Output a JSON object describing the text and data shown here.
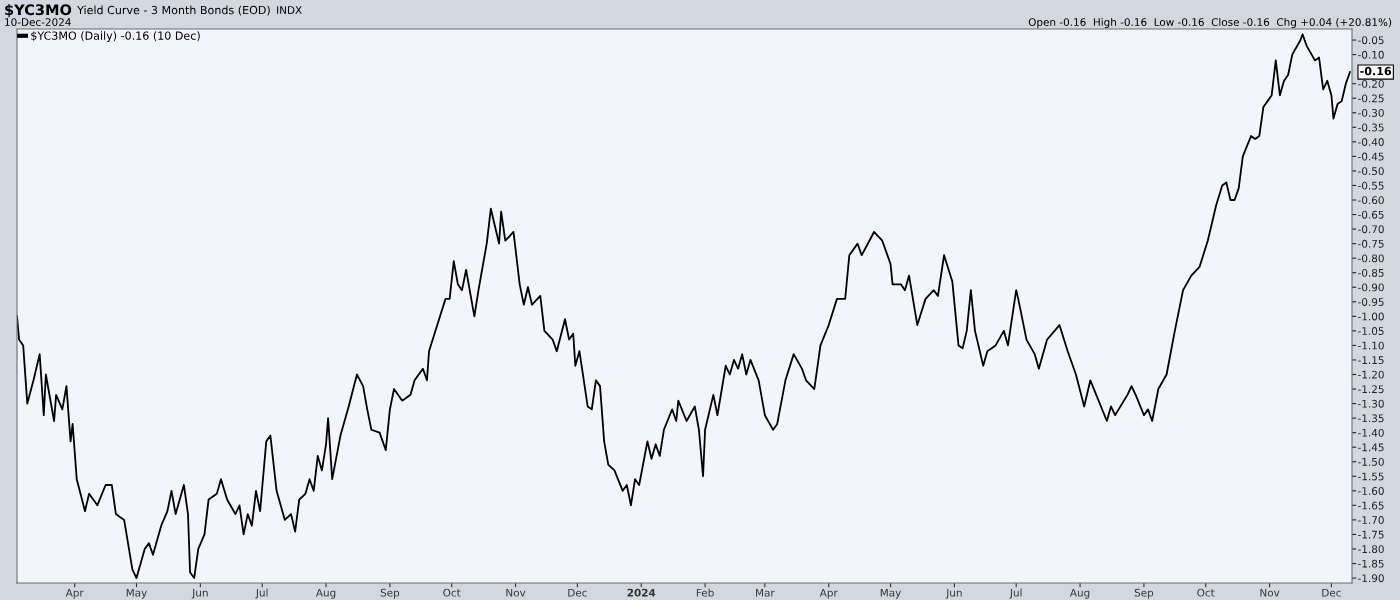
{
  "chart_data": {
    "type": "line",
    "title": "$YC3MO",
    "subtitle": "Yield Curve - 3 Month Bonds (EOD)",
    "annotations": [
      "INDX",
      "10-Dec-2024",
      "Open -0.16  High -0.16  Low -0.16  Close -0.16  Chg +0.04 (+20.81%)",
      {
        "text": "-0.16",
        "x": "2024-12-10",
        "y": -0.16
      }
    ],
    "legend": "top left",
    "grid": false,
    "marker": "none",
    "line_style": "solid",
    "xlim": [
      "2023-03-04",
      "2024-12-11"
    ],
    "xticks": [
      {
        "value": "2023-04-01",
        "label": "Apr"
      },
      {
        "value": "2023-05-01",
        "label": "May"
      },
      {
        "value": "2023-06-01",
        "label": "Jun"
      },
      {
        "value": "2023-07-01",
        "label": "Jul"
      },
      {
        "value": "2023-08-01",
        "label": "Aug"
      },
      {
        "value": "2023-09-01",
        "label": "Sep"
      },
      {
        "value": "2023-10-01",
        "label": "Oct"
      },
      {
        "value": "2023-11-01",
        "label": "Nov"
      },
      {
        "value": "2023-12-01",
        "label": "Dec"
      },
      {
        "value": "2024-01-01",
        "label": "2024"
      },
      {
        "value": "2024-02-01",
        "label": "Feb"
      },
      {
        "value": "2024-03-01",
        "label": "Mar"
      },
      {
        "value": "2024-04-01",
        "label": "Apr"
      },
      {
        "value": "2024-05-01",
        "label": "May"
      },
      {
        "value": "2024-06-01",
        "label": "Jun"
      },
      {
        "value": "2024-07-01",
        "label": "Jul"
      },
      {
        "value": "2024-08-01",
        "label": "Aug"
      },
      {
        "value": "2024-09-01",
        "label": "Sep"
      },
      {
        "value": "2024-10-01",
        "label": "Oct"
      },
      {
        "value": "2024-11-01",
        "label": "Nov"
      },
      {
        "value": "2024-12-01",
        "label": "Dec"
      }
    ],
    "ylim": [
      -1.917,
      -0.012
    ],
    "yticks": [
      -0.05,
      {
        "value": -0.1,
        "label": "-0.10"
      },
      {
        "value": -0.2,
        "label": "-0.20"
      },
      -0.25,
      {
        "value": -0.3,
        "label": "-0.30"
      },
      -0.35,
      {
        "value": -0.4,
        "label": "-0.40"
      },
      -0.45,
      {
        "value": -0.5,
        "label": "-0.50"
      },
      -0.55,
      {
        "value": -0.6,
        "label": "-0.60"
      },
      -0.65,
      {
        "value": -0.7,
        "label": "-0.70"
      },
      -0.75,
      {
        "value": -0.8,
        "label": "-0.80"
      },
      -0.85,
      {
        "value": -0.9,
        "label": "-0.90"
      },
      -0.95,
      {
        "value": -1.0,
        "label": "-1.00"
      },
      -1.05,
      {
        "value": -1.1,
        "label": "-1.10"
      },
      -1.15,
      {
        "value": -1.2,
        "label": "-1.20"
      },
      -1.25,
      {
        "value": -1.3,
        "label": "-1.30"
      },
      -1.35,
      {
        "value": -1.4,
        "label": "-1.40"
      },
      -1.45,
      {
        "value": -1.5,
        "label": "-1.50"
      },
      -1.55,
      {
        "value": -1.6,
        "label": "-1.60"
      },
      -1.65,
      {
        "value": -1.7,
        "label": "-1.70"
      },
      -1.75,
      {
        "value": -1.8,
        "label": "-1.80"
      },
      -1.85,
      {
        "value": -1.9,
        "label": "-1.90"
      }
    ],
    "series": [
      {
        "name": "$YC3MO (Daily) -0.16 (10 Dec)",
        "color": "#000000",
        "x": [
          "2023-03-04",
          "2023-03-05",
          "2023-03-07",
          "2023-03-09",
          "2023-03-12",
          "2023-03-15",
          "2023-03-17",
          "2023-03-18",
          "2023-03-22",
          "2023-03-23",
          "2023-03-26",
          "2023-03-28",
          "2023-03-30",
          "2023-03-31",
          "2023-04-02",
          "2023-04-06",
          "2023-04-08",
          "2023-04-12",
          "2023-04-16",
          "2023-04-19",
          "2023-04-21",
          "2023-04-25",
          "2023-04-29",
          "2023-05-01",
          "2023-05-05",
          "2023-05-07",
          "2023-05-09",
          "2023-05-13",
          "2023-05-16",
          "2023-05-18",
          "2023-05-20",
          "2023-05-24",
          "2023-05-26",
          "2023-05-27",
          "2023-05-29",
          "2023-05-31",
          "2023-06-03",
          "2023-06-05",
          "2023-06-09",
          "2023-06-11",
          "2023-06-14",
          "2023-06-18",
          "2023-06-20",
          "2023-06-22",
          "2023-06-24",
          "2023-06-26",
          "2023-06-28",
          "2023-06-30",
          "2023-07-03",
          "2023-07-05",
          "2023-07-08",
          "2023-07-12",
          "2023-07-15",
          "2023-07-17",
          "2023-07-19",
          "2023-07-22",
          "2023-07-24",
          "2023-07-26",
          "2023-07-28",
          "2023-07-30",
          "2023-08-01",
          "2023-08-02",
          "2023-08-04",
          "2023-08-08",
          "2023-08-12",
          "2023-08-16",
          "2023-08-19",
          "2023-08-21",
          "2023-08-23",
          "2023-08-27",
          "2023-08-30",
          "2023-09-01",
          "2023-09-03",
          "2023-09-07",
          "2023-09-11",
          "2023-09-13",
          "2023-09-17",
          "2023-09-19",
          "2023-09-20",
          "2023-09-24",
          "2023-09-28",
          "2023-09-30",
          "2023-10-02",
          "2023-10-04",
          "2023-10-06",
          "2023-10-08",
          "2023-10-12",
          "2023-10-14",
          "2023-10-18",
          "2023-10-20",
          "2023-10-22",
          "2023-10-24",
          "2023-10-25",
          "2023-10-27",
          "2023-10-31",
          "2023-11-03",
          "2023-11-05",
          "2023-11-07",
          "2023-11-09",
          "2023-11-13",
          "2023-11-15",
          "2023-11-19",
          "2023-11-21",
          "2023-11-25",
          "2023-11-27",
          "2023-11-29",
          "2023-11-30",
          "2023-12-02",
          "2023-12-06",
          "2023-12-08",
          "2023-12-10",
          "2023-12-12",
          "2023-12-14",
          "2023-12-16",
          "2023-12-19",
          "2023-12-23",
          "2023-12-25",
          "2023-12-27",
          "2023-12-29",
          "2023-12-31",
          "2024-01-04",
          "2024-01-06",
          "2024-01-08",
          "2024-01-10",
          "2024-01-12",
          "2024-01-16",
          "2024-01-18",
          "2024-01-19",
          "2024-01-23",
          "2024-01-27",
          "2024-01-29",
          "2024-01-31",
          "2024-02-01",
          "2024-02-05",
          "2024-02-07",
          "2024-02-11",
          "2024-02-13",
          "2024-02-15",
          "2024-02-17",
          "2024-02-19",
          "2024-02-21",
          "2024-02-23",
          "2024-02-27",
          "2024-03-01",
          "2024-03-05",
          "2024-03-07",
          "2024-03-11",
          "2024-03-15",
          "2024-03-19",
          "2024-03-21",
          "2024-03-25",
          "2024-03-28",
          "2024-04-01",
          "2024-04-05",
          "2024-04-09",
          "2024-04-11",
          "2024-04-15",
          "2024-04-17",
          "2024-04-23",
          "2024-04-27",
          "2024-05-01",
          "2024-05-02",
          "2024-05-06",
          "2024-05-08",
          "2024-05-10",
          "2024-05-14",
          "2024-05-18",
          "2024-05-22",
          "2024-05-24",
          "2024-05-27",
          "2024-05-31",
          "2024-06-03",
          "2024-06-05",
          "2024-06-07",
          "2024-06-09",
          "2024-06-11",
          "2024-06-15",
          "2024-06-17",
          "2024-06-21",
          "2024-06-25",
          "2024-06-27",
          "2024-07-01",
          "2024-07-02",
          "2024-07-06",
          "2024-07-10",
          "2024-07-12",
          "2024-07-16",
          "2024-07-22",
          "2024-07-26",
          "2024-07-30",
          "2024-08-03",
          "2024-08-06",
          "2024-08-10",
          "2024-08-14",
          "2024-08-16",
          "2024-08-18",
          "2024-08-24",
          "2024-08-26",
          "2024-08-28",
          "2024-09-01",
          "2024-09-03",
          "2024-09-05",
          "2024-09-08",
          "2024-09-12",
          "2024-09-16",
          "2024-09-20",
          "2024-09-24",
          "2024-09-28",
          "2024-10-02",
          "2024-10-06",
          "2024-10-09",
          "2024-10-11",
          "2024-10-13",
          "2024-10-15",
          "2024-10-17",
          "2024-10-19",
          "2024-10-23",
          "2024-10-25",
          "2024-10-27",
          "2024-10-29",
          "2024-11-02",
          "2024-11-04",
          "2024-11-06",
          "2024-11-08",
          "2024-11-10",
          "2024-11-12",
          "2024-11-16",
          "2024-11-17",
          "2024-11-19",
          "2024-11-23",
          "2024-11-25",
          "2024-11-27",
          "2024-11-29",
          "2024-12-01",
          "2024-12-02",
          "2024-12-04",
          "2024-12-06",
          "2024-12-08",
          "2024-12-10"
        ],
        "values": [
          -1.0,
          -1.08,
          -1.1,
          -1.3,
          -1.22,
          -1.13,
          -1.34,
          -1.2,
          -1.36,
          -1.27,
          -1.32,
          -1.24,
          -1.43,
          -1.37,
          -1.56,
          -1.67,
          -1.61,
          -1.65,
          -1.58,
          -1.58,
          -1.68,
          -1.7,
          -1.87,
          -1.9,
          -1.8,
          -1.78,
          -1.82,
          -1.72,
          -1.67,
          -1.6,
          -1.68,
          -1.58,
          -1.68,
          -1.88,
          -1.9,
          -1.8,
          -1.75,
          -1.63,
          -1.61,
          -1.56,
          -1.63,
          -1.68,
          -1.65,
          -1.75,
          -1.68,
          -1.72,
          -1.6,
          -1.67,
          -1.43,
          -1.41,
          -1.6,
          -1.7,
          -1.68,
          -1.74,
          -1.63,
          -1.61,
          -1.56,
          -1.6,
          -1.48,
          -1.53,
          -1.44,
          -1.35,
          -1.56,
          -1.41,
          -1.31,
          -1.2,
          -1.24,
          -1.32,
          -1.39,
          -1.4,
          -1.46,
          -1.32,
          -1.25,
          -1.29,
          -1.27,
          -1.22,
          -1.18,
          -1.22,
          -1.12,
          -1.03,
          -0.94,
          -0.94,
          -0.81,
          -0.89,
          -0.91,
          -0.84,
          -1.0,
          -0.91,
          -0.75,
          -0.63,
          -0.69,
          -0.75,
          -0.64,
          -0.74,
          -0.71,
          -0.89,
          -0.96,
          -0.9,
          -0.96,
          -0.93,
          -1.05,
          -1.08,
          -1.12,
          -1.01,
          -1.08,
          -1.06,
          -1.17,
          -1.12,
          -1.31,
          -1.32,
          -1.22,
          -1.24,
          -1.43,
          -1.51,
          -1.53,
          -1.6,
          -1.58,
          -1.65,
          -1.56,
          -1.58,
          -1.43,
          -1.49,
          -1.44,
          -1.48,
          -1.39,
          -1.32,
          -1.36,
          -1.29,
          -1.36,
          -1.31,
          -1.39,
          -1.55,
          -1.39,
          -1.27,
          -1.34,
          -1.17,
          -1.2,
          -1.15,
          -1.18,
          -1.13,
          -1.2,
          -1.15,
          -1.22,
          -1.34,
          -1.39,
          -1.37,
          -1.22,
          -1.13,
          -1.18,
          -1.22,
          -1.25,
          -1.1,
          -1.03,
          -0.94,
          -0.94,
          -0.79,
          -0.75,
          -0.79,
          -0.71,
          -0.74,
          -0.82,
          -0.89,
          -0.89,
          -0.91,
          -0.86,
          -1.03,
          -0.94,
          -0.91,
          -0.93,
          -0.79,
          -0.88,
          -1.1,
          -1.11,
          -1.05,
          -0.91,
          -1.05,
          -1.17,
          -1.12,
          -1.1,
          -1.05,
          -1.1,
          -0.91,
          -0.94,
          -1.08,
          -1.13,
          -1.18,
          -1.08,
          -1.03,
          -1.12,
          -1.2,
          -1.31,
          -1.22,
          -1.29,
          -1.36,
          -1.31,
          -1.34,
          -1.27,
          -1.24,
          -1.27,
          -1.34,
          -1.32,
          -1.36,
          -1.25,
          -1.2,
          -1.05,
          -0.91,
          -0.86,
          -0.83,
          -0.74,
          -0.62,
          -0.55,
          -0.54,
          -0.6,
          -0.6,
          -0.56,
          -0.45,
          -0.38,
          -0.39,
          -0.38,
          -0.28,
          -0.24,
          -0.12,
          -0.24,
          -0.19,
          -0.17,
          -0.1,
          -0.05,
          -0.03,
          -0.07,
          -0.12,
          -0.11,
          -0.22,
          -0.19,
          -0.24,
          -0.32,
          -0.27,
          -0.26,
          -0.2,
          -0.16
        ]
      }
    ]
  }
}
